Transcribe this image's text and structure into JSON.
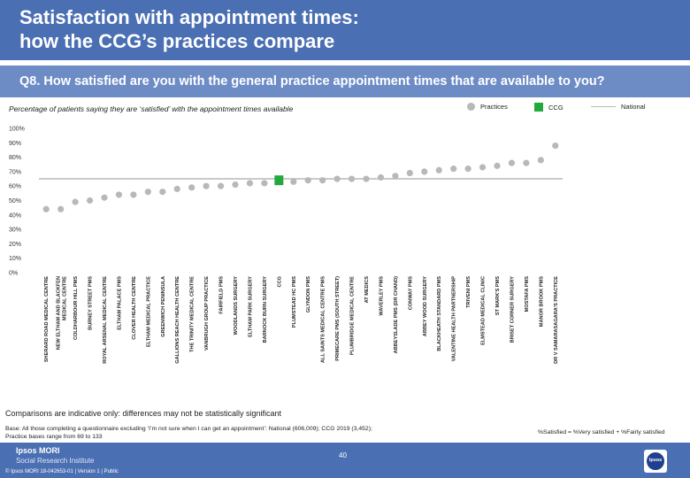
{
  "header": {
    "title_line1": "Satisfaction with appointment times:",
    "title_line2": "how the CCG’s practices compare",
    "question": "Q8. How satisfied are you with the general practice appointment times that are available to you?"
  },
  "legend": {
    "practices": "Practices",
    "ccg": "CCG",
    "national": "National"
  },
  "footer": {
    "note": "Comparisons are indicative only: differences may not be statistically significant",
    "base_line1": "Base: All those completing a questionnaire excluding ‘I’m not sure when I can get an appointment’: National (606,009); CCG 2019 (3,452);",
    "base_line2": "Practice bases range from 69 to 133",
    "definition": "%Satisfied = %Very satisfied + %Fairly satisfied",
    "logo_line1": "Ipsos MORI",
    "logo_line2": "Social Research Institute",
    "meta": "© Ipsos MORI     18-042653-01 | Version 1 | Public",
    "page_number": "40",
    "brand_logo": "Ipsos"
  },
  "colors": {
    "title_band": "#4a6fb3",
    "question_band": "#6d8cc6",
    "practice_dot": "#b8b8b8",
    "ccg_bar": "#22a83c",
    "national_line": "#b8b8b8"
  },
  "chart_data": {
    "type": "scatter",
    "title": "Percentage of patients saying they are ‘satisfied’ with the appointment times available",
    "xlabel": "",
    "ylabel": "",
    "ylim": [
      0,
      100
    ],
    "yticks": [
      "0%",
      "10%",
      "20%",
      "30%",
      "40%",
      "50%",
      "60%",
      "70%",
      "80%",
      "90%",
      "100%"
    ],
    "national": 65,
    "series": [
      {
        "name": "Practices",
        "categories": [
          "SHERARD ROAD MEDICAL CENTRE",
          "NEW ELTHAM AND BLACKFEN MEDICAL CENTRE",
          "COLDHARBOUR HILL PMS",
          "BURNEY STREET PMS",
          "ROYAL ARSENAL MEDICAL CENTRE",
          "ELTHAM PALACE PMS",
          "CLOVER HEALTH CENTRE",
          "ELTHAM MEDICAL PRACTICE",
          "GREENWICH PENINSULA",
          "GALLIONS REACH HEALTH CENTRE",
          "THE TRINITY MEDICAL CENTRE",
          "VANBRUGH GROUP PRACTICE",
          "FAIRFIELD PMS",
          "WOODLANDS SURGERY",
          "ELTHAM PARK SURGERY",
          "BARNOCK BURN SURGERY",
          "CCG",
          "PLUMSTEAD HC PMS",
          "GLYNDON PMS",
          "ALL SAINTS MEDICAL CENTRE PMS",
          "PRIMECARE PMS (SOUTH STREET)",
          "PLUMBRIDGE MEDICAL CENTRE",
          "AT MEDICS",
          "WAVERLEY PMS",
          "ABBEYSLADE PMS (DR CHAND)",
          "CONWAY PMS",
          "ABBEY WOOD SURGERY",
          "BLACKHEATH STANDARD PMS",
          "VALENTINE HEALTH PARTNERSHIP",
          "TRIVENI PMS",
          "ELMSTEAD MEDICAL CLINIC",
          "ST MARK'S PMS",
          "BRISET CORNER SURGERY",
          "MOSTAFA PMS",
          "MANOR BROOK PMS",
          "DR V SAMARASAGARA'S PRACTICE"
        ],
        "values": [
          44,
          44,
          49,
          50,
          52,
          54,
          54,
          56,
          56,
          58,
          59,
          60,
          60,
          61,
          62,
          62,
          64,
          63,
          64,
          64,
          65,
          65,
          65,
          66,
          67,
          69,
          70,
          71,
          72,
          72,
          73,
          74,
          76,
          76,
          78,
          88
        ]
      },
      {
        "name": "CCG",
        "category": "CCG",
        "value": 64
      }
    ]
  }
}
